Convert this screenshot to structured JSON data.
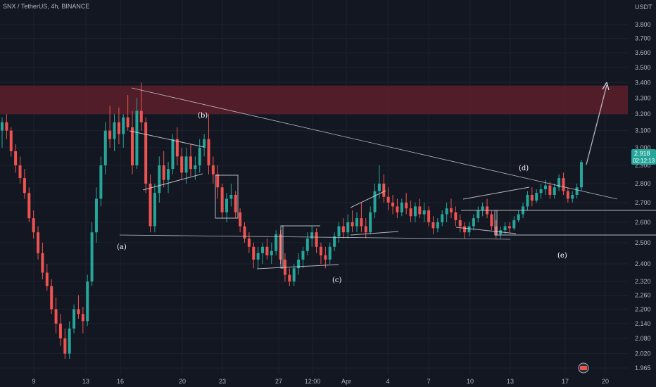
{
  "header": {
    "title": "SNX / TetherUS, 4h, BINANCE",
    "currency": "USDT"
  },
  "price_badge": {
    "value": "2.918",
    "countdown": "02:12:13"
  },
  "colors": {
    "background": "#131722",
    "grid": "#1e222d",
    "up": "#26a69a",
    "down": "#ef5350",
    "zone": "#5c1e2a",
    "line": "#d1d4dc",
    "badge": "#26a69a"
  },
  "chart_data": {
    "type": "candlestick",
    "title": "SNX / TetherUS, 4h, BINANCE",
    "y_axis": {
      "unit": "USDT",
      "min": 1.95,
      "max": 3.86,
      "scale": "log",
      "ticks": [
        "3.800",
        "3.700",
        "3.600",
        "3.500",
        "3.400",
        "3.300",
        "3.200",
        "3.100",
        "3.000",
        "2.900",
        "2.800",
        "2.700",
        "2.600",
        "2.500",
        "2.400",
        "2.320",
        "2.260",
        "2.200",
        "2.140",
        "2.080",
        "2.020",
        "1.965"
      ]
    },
    "x_axis": {
      "ticks": [
        "9",
        "13",
        "16",
        "20",
        "23",
        "27",
        "12:00",
        "Apr",
        "4",
        "7",
        "10",
        "13",
        "17",
        "20"
      ]
    },
    "resistance_zone": {
      "low": 3.2,
      "high": 3.38
    },
    "wave_labels": [
      "(a)",
      "(b)",
      "(c)",
      "(d)",
      "(e)"
    ],
    "horizontal_levels": [
      2.52,
      2.63
    ],
    "grid": true,
    "last_price": 2.918,
    "candles": [
      [
        3.1,
        3.18,
        3.0,
        3.15
      ],
      [
        3.15,
        3.2,
        3.05,
        3.1
      ],
      [
        3.1,
        3.12,
        2.95,
        2.98
      ],
      [
        2.98,
        3.02,
        2.86,
        2.9
      ],
      [
        2.9,
        2.95,
        2.8,
        2.83
      ],
      [
        2.83,
        2.88,
        2.72,
        2.75
      ],
      [
        2.75,
        2.78,
        2.6,
        2.62
      ],
      [
        2.62,
        2.66,
        2.52,
        2.55
      ],
      [
        2.55,
        2.58,
        2.42,
        2.45
      ],
      [
        2.45,
        2.5,
        2.33,
        2.36
      ],
      [
        2.36,
        2.4,
        2.28,
        2.3
      ],
      [
        2.3,
        2.33,
        2.18,
        2.2
      ],
      [
        2.2,
        2.25,
        2.1,
        2.14
      ],
      [
        2.14,
        2.18,
        2.05,
        2.08
      ],
      [
        2.08,
        2.12,
        2.0,
        2.02
      ],
      [
        2.02,
        2.15,
        2.0,
        2.12
      ],
      [
        2.12,
        2.22,
        2.1,
        2.2
      ],
      [
        2.2,
        2.26,
        2.16,
        2.18
      ],
      [
        2.18,
        2.21,
        2.1,
        2.15
      ],
      [
        2.15,
        2.35,
        2.13,
        2.32
      ],
      [
        2.32,
        2.6,
        2.3,
        2.55
      ],
      [
        2.55,
        2.78,
        2.5,
        2.72
      ],
      [
        2.72,
        2.95,
        2.68,
        2.9
      ],
      [
        2.9,
        3.15,
        2.85,
        3.1
      ],
      [
        3.1,
        3.25,
        3.0,
        3.05
      ],
      [
        3.05,
        3.2,
        2.98,
        3.15
      ],
      [
        3.15,
        3.24,
        3.02,
        3.08
      ],
      [
        3.08,
        3.2,
        3.0,
        3.18
      ],
      [
        3.18,
        3.32,
        3.1,
        3.12
      ],
      [
        3.12,
        3.22,
        2.85,
        2.9
      ],
      [
        2.9,
        3.3,
        2.88,
        3.22
      ],
      [
        3.22,
        3.4,
        3.1,
        3.15
      ],
      [
        3.15,
        3.18,
        2.75,
        2.8
      ],
      [
        2.8,
        2.85,
        2.55,
        2.58
      ],
      [
        2.58,
        2.8,
        2.55,
        2.75
      ],
      [
        2.75,
        2.95,
        2.7,
        2.9
      ],
      [
        2.9,
        2.98,
        2.78,
        2.82
      ],
      [
        2.82,
        2.92,
        2.75,
        2.88
      ],
      [
        2.88,
        3.08,
        2.85,
        3.05
      ],
      [
        3.05,
        3.12,
        2.9,
        2.95
      ],
      [
        2.95,
        3.0,
        2.82,
        2.86
      ],
      [
        2.86,
        3.0,
        2.8,
        2.95
      ],
      [
        2.95,
        3.02,
        2.84,
        2.88
      ],
      [
        2.88,
        2.95,
        2.82,
        2.9
      ],
      [
        2.9,
        3.05,
        2.86,
        3.0
      ],
      [
        3.0,
        3.08,
        2.95,
        3.05
      ],
      [
        3.05,
        3.2,
        2.85,
        2.9
      ],
      [
        2.9,
        2.95,
        2.8,
        2.85
      ],
      [
        2.85,
        2.9,
        2.72,
        2.78
      ],
      [
        2.78,
        2.8,
        2.62,
        2.65
      ],
      [
        2.65,
        2.75,
        2.6,
        2.72
      ],
      [
        2.72,
        2.8,
        2.68,
        2.74
      ],
      [
        2.74,
        2.76,
        2.62,
        2.65
      ],
      [
        2.65,
        2.67,
        2.55,
        2.58
      ],
      [
        2.58,
        2.6,
        2.5,
        2.52
      ],
      [
        2.52,
        2.55,
        2.45,
        2.48
      ],
      [
        2.48,
        2.5,
        2.38,
        2.42
      ],
      [
        2.42,
        2.48,
        2.38,
        2.45
      ],
      [
        2.45,
        2.5,
        2.4,
        2.48
      ],
      [
        2.48,
        2.52,
        2.42,
        2.44
      ],
      [
        2.44,
        2.5,
        2.4,
        2.46
      ],
      [
        2.46,
        2.56,
        2.44,
        2.54
      ],
      [
        2.54,
        2.56,
        2.4,
        2.42
      ],
      [
        2.42,
        2.45,
        2.32,
        2.35
      ],
      [
        2.35,
        2.38,
        2.3,
        2.32
      ],
      [
        2.32,
        2.4,
        2.3,
        2.38
      ],
      [
        2.38,
        2.45,
        2.35,
        2.42
      ],
      [
        2.42,
        2.48,
        2.38,
        2.46
      ],
      [
        2.46,
        2.55,
        2.44,
        2.52
      ],
      [
        2.52,
        2.58,
        2.48,
        2.55
      ],
      [
        2.55,
        2.57,
        2.45,
        2.48
      ],
      [
        2.48,
        2.5,
        2.4,
        2.44
      ],
      [
        2.44,
        2.48,
        2.38,
        2.42
      ],
      [
        2.42,
        2.5,
        2.4,
        2.48
      ],
      [
        2.48,
        2.55,
        2.46,
        2.53
      ],
      [
        2.53,
        2.6,
        2.5,
        2.58
      ],
      [
        2.58,
        2.62,
        2.52,
        2.55
      ],
      [
        2.55,
        2.64,
        2.52,
        2.6
      ],
      [
        2.6,
        2.66,
        2.55,
        2.58
      ],
      [
        2.58,
        2.65,
        2.55,
        2.62
      ],
      [
        2.62,
        2.7,
        2.55,
        2.58
      ],
      [
        2.58,
        2.62,
        2.52,
        2.55
      ],
      [
        2.55,
        2.68,
        2.54,
        2.65
      ],
      [
        2.65,
        2.8,
        2.62,
        2.76
      ],
      [
        2.76,
        2.9,
        2.72,
        2.8
      ],
      [
        2.8,
        2.85,
        2.7,
        2.73
      ],
      [
        2.73,
        2.78,
        2.66,
        2.7
      ],
      [
        2.7,
        2.74,
        2.64,
        2.68
      ],
      [
        2.68,
        2.72,
        2.62,
        2.65
      ],
      [
        2.65,
        2.72,
        2.63,
        2.7
      ],
      [
        2.7,
        2.75,
        2.64,
        2.67
      ],
      [
        2.67,
        2.71,
        2.6,
        2.63
      ],
      [
        2.63,
        2.7,
        2.6,
        2.68
      ],
      [
        2.68,
        2.72,
        2.62,
        2.64
      ],
      [
        2.64,
        2.7,
        2.6,
        2.66
      ],
      [
        2.66,
        2.68,
        2.58,
        2.6
      ],
      [
        2.6,
        2.63,
        2.54,
        2.57
      ],
      [
        2.57,
        2.62,
        2.55,
        2.6
      ],
      [
        2.6,
        2.66,
        2.58,
        2.64
      ],
      [
        2.64,
        2.7,
        2.6,
        2.67
      ],
      [
        2.67,
        2.72,
        2.62,
        2.65
      ],
      [
        2.65,
        2.68,
        2.58,
        2.61
      ],
      [
        2.61,
        2.64,
        2.55,
        2.58
      ],
      [
        2.58,
        2.6,
        2.52,
        2.55
      ],
      [
        2.55,
        2.6,
        2.53,
        2.58
      ],
      [
        2.58,
        2.64,
        2.56,
        2.62
      ],
      [
        2.62,
        2.68,
        2.6,
        2.66
      ],
      [
        2.66,
        2.7,
        2.63,
        2.68
      ],
      [
        2.68,
        2.72,
        2.62,
        2.64
      ],
      [
        2.64,
        2.66,
        2.56,
        2.58
      ],
      [
        2.58,
        2.61,
        2.52,
        2.54
      ],
      [
        2.54,
        2.58,
        2.52,
        2.56
      ],
      [
        2.56,
        2.6,
        2.54,
        2.58
      ],
      [
        2.58,
        2.6,
        2.55,
        2.57
      ],
      [
        2.57,
        2.63,
        2.56,
        2.61
      ],
      [
        2.61,
        2.66,
        2.6,
        2.64
      ],
      [
        2.64,
        2.7,
        2.62,
        2.68
      ],
      [
        2.68,
        2.76,
        2.66,
        2.74
      ],
      [
        2.74,
        2.78,
        2.68,
        2.71
      ],
      [
        2.71,
        2.77,
        2.7,
        2.75
      ],
      [
        2.75,
        2.8,
        2.72,
        2.77
      ],
      [
        2.77,
        2.82,
        2.74,
        2.79
      ],
      [
        2.79,
        2.81,
        2.72,
        2.74
      ],
      [
        2.74,
        2.8,
        2.72,
        2.78
      ],
      [
        2.78,
        2.85,
        2.76,
        2.83
      ],
      [
        2.83,
        2.86,
        2.74,
        2.76
      ],
      [
        2.76,
        2.78,
        2.7,
        2.72
      ],
      [
        2.72,
        2.76,
        2.7,
        2.74
      ],
      [
        2.74,
        2.8,
        2.72,
        2.78
      ],
      [
        2.78,
        2.93,
        2.76,
        2.918
      ]
    ]
  }
}
